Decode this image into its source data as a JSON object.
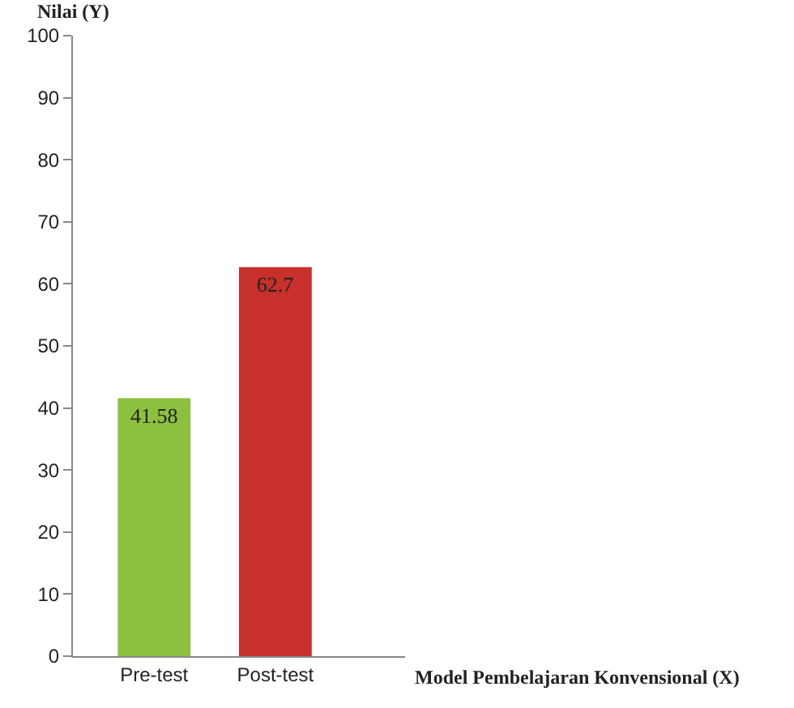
{
  "chart_data": {
    "type": "bar",
    "xlabel": "Model Pembelajaran Konvensional (X)",
    "ylabel": "Nilai (Y)",
    "categories": [
      "Pre-test",
      "Post-test"
    ],
    "values": [
      41.58,
      62.7
    ],
    "colors": [
      "#8dc03f",
      "#c7302b"
    ],
    "data_labels": true,
    "ylim": [
      0,
      100
    ],
    "yticks": [
      0,
      10,
      20,
      30,
      40,
      50,
      60,
      70,
      80,
      90,
      100
    ],
    "legend": false
  }
}
